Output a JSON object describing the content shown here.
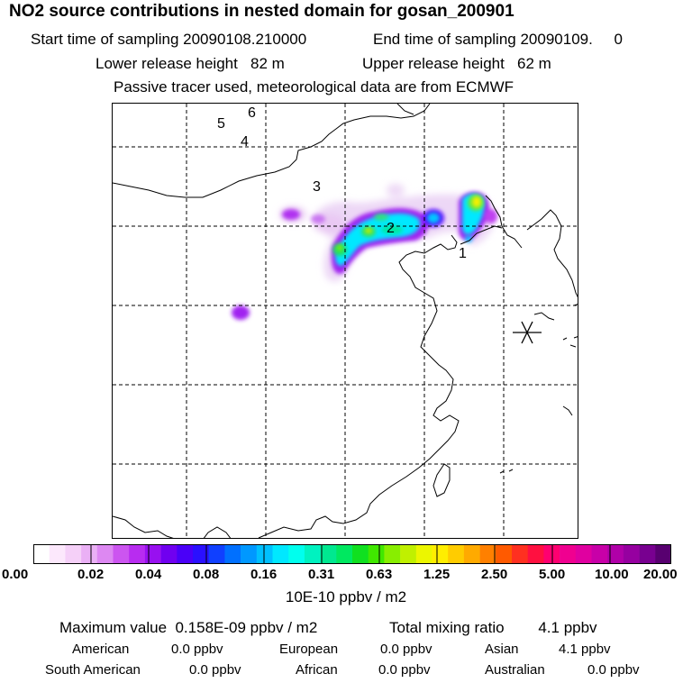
{
  "header": {
    "title": "NO2 source contributions in nested domain for gosan_200901",
    "start_label": "Start time of sampling 20090108.210000",
    "end_label": "End time of sampling 20090109.     0",
    "lower_release": "Lower release height   82 m",
    "upper_release": "Upper release height   62 m",
    "tracer_note": "Passive tracer used, meteorological data are from ECMWF"
  },
  "map": {
    "region_labels": [
      "1",
      "2",
      "3",
      "4",
      "5",
      "6"
    ],
    "receptor_marker": "gosan-receptor-star",
    "colors": {
      "land_outline": "#000000",
      "grid": "#000000"
    }
  },
  "colorbar": {
    "unit": "10E-10 ppbv / m2",
    "tick_labels": [
      "0.00",
      "0.02",
      "0.04",
      "0.08",
      "0.16",
      "0.31",
      "0.63",
      "1.25",
      "2.50",
      "5.00",
      "10.00",
      "20.00"
    ],
    "colors": [
      "#ffffff",
      "#fce8fc",
      "#f5d0f8",
      "#eab0f5",
      "#dd88f2",
      "#cc55f0",
      "#b82cf0",
      "#9810f0",
      "#7000f0",
      "#4a00f8",
      "#2a10ff",
      "#1040ff",
      "#0070ff",
      "#0098ff",
      "#00c0ff",
      "#00e8ff",
      "#00ffee",
      "#00f2c0",
      "#00e890",
      "#00e860",
      "#10e020",
      "#40e800",
      "#88ee00",
      "#c0f000",
      "#ecf600",
      "#ffee00",
      "#ffcc00",
      "#ffaa00",
      "#ff8000",
      "#ff5a00",
      "#ff3020",
      "#ff1040",
      "#ff0070",
      "#f00090",
      "#e000a0",
      "#c800a8",
      "#b000a8",
      "#9600a0",
      "#780090",
      "#580070"
    ]
  },
  "stats": {
    "maximum": "Maximum value  0.158E-09 ppbv / m2",
    "total": "Total mixing ratio        4.1 ppbv",
    "american_label": "American",
    "american_value": "0.0 ppbv",
    "european_label": "European",
    "european_value": "0.0 ppbv",
    "asian_label": "Asian",
    "asian_value": "4.1 ppbv",
    "south_american_label": "South American",
    "south_american_value": "0.0 ppbv",
    "african_label": "African",
    "african_value": "0.0 ppbv",
    "australian_label": "Australian",
    "australian_value": "0.0 ppbv"
  }
}
